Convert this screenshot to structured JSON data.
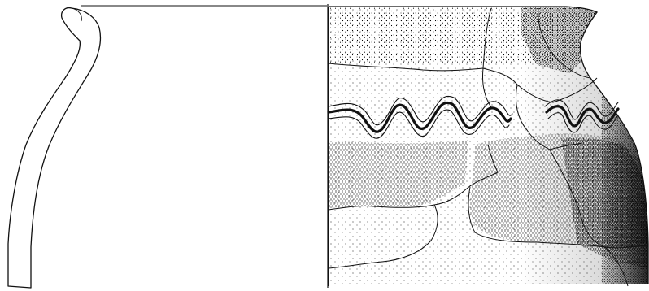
{
  "drawing": {
    "line_color": "#111111",
    "stipple_color": "#000000",
    "background_color": "#ffffff",
    "profile_view": "profile-section",
    "surface_view": "exterior-surface",
    "decoration": "wavy-band"
  }
}
